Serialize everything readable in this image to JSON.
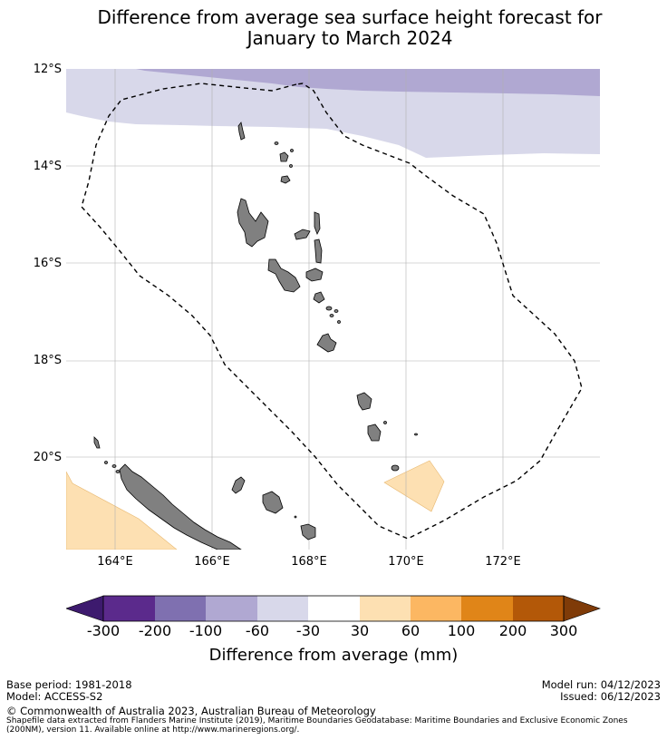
{
  "title": {
    "line1": "Difference from average sea surface height forecast for",
    "line2": "January to March 2024"
  },
  "axes": {
    "lat_labels": [
      "12°S",
      "14°S",
      "16°S",
      "18°S",
      "20°S"
    ],
    "lon_labels": [
      "164°E",
      "166°E",
      "168°E",
      "170°E",
      "172°E"
    ]
  },
  "map": {
    "extent": {
      "lon_min": 163,
      "lon_max": 174,
      "lat_min": -21.9,
      "lat_max": -12
    },
    "gridlines": true,
    "features": [
      {
        "name": "negative-anomaly-band",
        "category": "-100 to -60"
      },
      {
        "name": "slight-negative-band",
        "category": "-60 to -30"
      },
      {
        "name": "positive-anomaly-patch-east",
        "category": "30 to 60"
      },
      {
        "name": "positive-anomaly-patch-southwest",
        "category": "30 to 60"
      },
      {
        "name": "vanuatu-islands"
      },
      {
        "name": "new-caledonia"
      },
      {
        "name": "loyalty-islands"
      },
      {
        "name": "eez-boundary"
      }
    ]
  },
  "colorbar": {
    "label": "Difference from average (mm)",
    "ticks": [
      "-300",
      "-200",
      "-100",
      "-60",
      "-30",
      "30",
      "60",
      "100",
      "200",
      "300"
    ],
    "colors": [
      "#3d1a6e",
      "#5b2a8c",
      "#7f70b0",
      "#b0a8d2",
      "#d8d8ea",
      "#ffffff",
      "#fde0b2",
      "#fcb762",
      "#e08518",
      "#b35808",
      "#7f3b08"
    ]
  },
  "footer": {
    "base_period": "Base period: 1981-2018",
    "model": "Model: ACCESS-S2",
    "model_run": "Model run: 04/12/2023",
    "issued": "Issued: 06/12/2023",
    "copyright": "© Commonwealth of Australia 2023, Australian Bureau of Meteorology",
    "sources": "Shapefile data extracted from Flanders Marine Institute (2019), Maritime Boundaries Geodatabase: Maritime Boundaries and Exclusive Economic Zones (200NM), version 11. Available online at http://www.marineregions.org/."
  }
}
